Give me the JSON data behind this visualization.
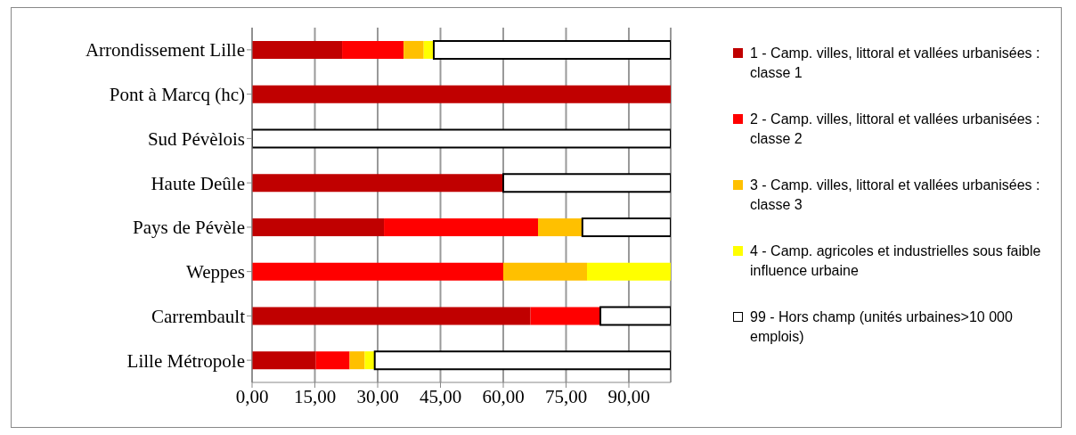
{
  "chart_data": {
    "type": "bar",
    "orientation": "horizontal",
    "stacked": true,
    "categories": [
      "Arrondissement Lille",
      "Pont à Marcq (hc)",
      "Sud Pévèlois",
      "Haute Deûle",
      "Pays de Pévèle",
      "Weppes",
      "Carrembault",
      "Lille Métropole"
    ],
    "series": [
      {
        "name": "1 - Camp. villes, littoral et vallées urbanisées : classe 1",
        "color": "#c00000",
        "values": [
          21.5,
          100,
          0,
          60,
          31.5,
          0,
          66.5,
          15.2
        ]
      },
      {
        "name": "2 - Camp. villes, littoral et vallées urbanisées : classe 2",
        "color": "#ff0000",
        "values": [
          14.7,
          0,
          0,
          0,
          36.8,
          60,
          16.7,
          8.1
        ]
      },
      {
        "name": "3 - Camp. villes, littoral et vallées urbanisées : classe 3",
        "color": "#ffc000",
        "values": [
          4.8,
          0,
          0,
          0,
          10.6,
          20,
          0,
          3.6
        ]
      },
      {
        "name": "4 - Camp. agricoles et industrielles sous faible influence urbaine",
        "color": "#ffff00",
        "values": [
          2.4,
          0,
          0,
          0,
          0,
          20,
          0,
          2.4
        ]
      },
      {
        "name": "99 - Hors champ (unités urbaines>10 000 emplois)",
        "color": "#ffffff",
        "values": [
          56.6,
          0,
          100,
          40,
          21.1,
          0,
          16.8,
          70.7
        ]
      }
    ],
    "xlim": [
      0,
      100
    ],
    "xticks": [
      {
        "value": 0,
        "label": "0,00"
      },
      {
        "value": 15,
        "label": "15,00"
      },
      {
        "value": 30,
        "label": "30,00"
      },
      {
        "value": 45,
        "label": "45,00"
      },
      {
        "value": 60,
        "label": "60,00"
      },
      {
        "value": 75,
        "label": "75,00"
      },
      {
        "value": 90,
        "label": "90,00"
      }
    ],
    "grid": "x",
    "legend": "right"
  }
}
